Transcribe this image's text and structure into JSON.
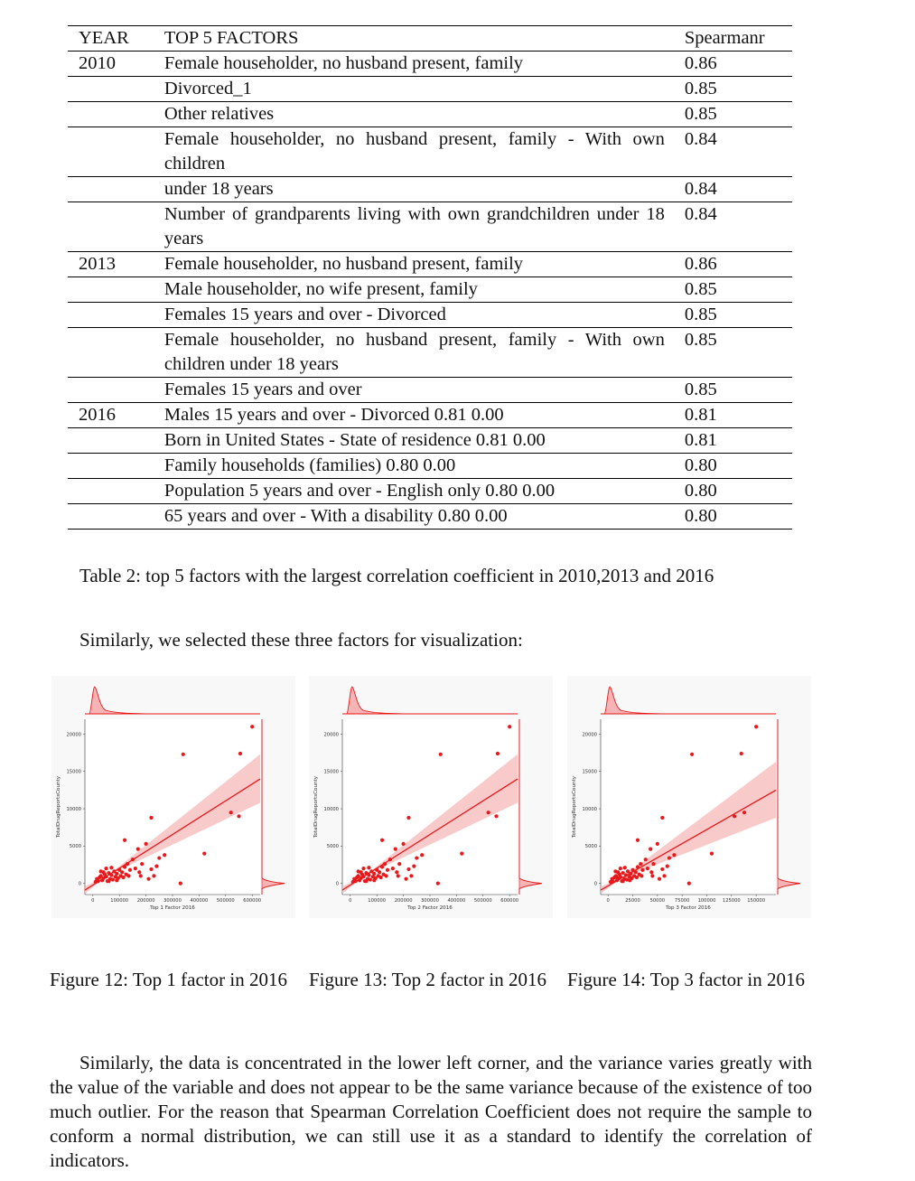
{
  "table": {
    "headers": [
      "YEAR",
      "TOP 5 FACTORS",
      "Spearmanr"
    ],
    "rows": [
      {
        "year": "2010",
        "factor": "Female householder, no husband present, family",
        "value": "0.86"
      },
      {
        "year": "",
        "factor": "Divorced_1",
        "value": "0.85"
      },
      {
        "year": "",
        "factor": "Other relatives",
        "value": "0.85"
      },
      {
        "year": "",
        "factor": "Female householder, no husband present, family - With own children",
        "value": "0.84"
      },
      {
        "year": "",
        "factor": "under 18 years",
        "value": "0.84"
      },
      {
        "year": "",
        "factor": "Number of grandparents living with own grandchildren under 18 years",
        "value": "0.84"
      },
      {
        "year": "2013",
        "factor": "Female householder, no husband present, family",
        "value": "0.86"
      },
      {
        "year": "",
        "factor": "Male householder, no wife present, family",
        "value": "0.85"
      },
      {
        "year": "",
        "factor": "Females 15 years and over - Divorced",
        "value": "0.85"
      },
      {
        "year": "",
        "factor": "Female householder, no husband present, family - With own children under 18 years",
        "value": "0.85"
      },
      {
        "year": "",
        "factor": "Females 15 years and over",
        "value": "0.85"
      },
      {
        "year": "2016",
        "factor": "Males 15 years and over - Divorced 0.81 0.00",
        "value": "0.81"
      },
      {
        "year": "",
        "factor": "Born in United States - State of residence 0.81 0.00",
        "value": "0.81"
      },
      {
        "year": "",
        "factor": "Family households (families) 0.80 0.00",
        "value": "0.80"
      },
      {
        "year": "",
        "factor": "Population 5 years and over - English only 0.80 0.00",
        "value": "0.80"
      },
      {
        "year": "",
        "factor": "65 years and over - With a disability 0.80 0.00",
        "value": "0.80"
      }
    ]
  },
  "caption": "Table 2: top 5 factors with the largest correlation coefficient in 2010,2013 and 2016",
  "intro": "Similarly, we selected these three factors for visualization:",
  "figure_captions": [
    "Figure 12: Top 1 factor in 2016",
    "Figure 13: Top 2 factor in 2016",
    "Figure 14: Top 3 factor in 2016"
  ],
  "paragraph": "Similarly, the data is concentrated in the lower left corner, and the variance varies greatly with the value of the variable and does not appear to be the same variance because of the existence of too much outlier. For the reason that Spearman Correlation Coefficient does not require the sample to conform a normal distribution, we can still use it as a standard to identify the correlation of indicators.",
  "chart_data": [
    {
      "type": "scatter",
      "xlabel": "Top 1 Factor 2016",
      "ylabel": "TotalDrugReportsCounty",
      "xlim": [
        -30000,
        630000
      ],
      "ylim": [
        -1500,
        22000
      ],
      "xticks": [
        0,
        100000,
        200000,
        300000,
        400000,
        500000,
        600000
      ],
      "yticks": [
        0,
        5000,
        10000,
        15000,
        20000
      ],
      "color": "#e8181b",
      "regression": {
        "x0": -30000,
        "y0": -900,
        "x1": 630000,
        "y1": 14000
      },
      "ci": {
        "lower_end": 10800,
        "upper_end": 17300
      },
      "points": [
        [
          10000,
          200
        ],
        [
          15000,
          600
        ],
        [
          20000,
          300
        ],
        [
          25000,
          800
        ],
        [
          30000,
          1000
        ],
        [
          35000,
          400
        ],
        [
          40000,
          700
        ],
        [
          45000,
          1200
        ],
        [
          50000,
          900
        ],
        [
          55000,
          300
        ],
        [
          60000,
          1400
        ],
        [
          65000,
          600
        ],
        [
          70000,
          1100
        ],
        [
          75000,
          500
        ],
        [
          80000,
          1600
        ],
        [
          85000,
          900
        ],
        [
          90000,
          1300
        ],
        [
          95000,
          700
        ],
        [
          100000,
          1800
        ],
        [
          105000,
          1000
        ],
        [
          110000,
          1500
        ],
        [
          115000,
          800
        ],
        [
          120000,
          2200
        ],
        [
          125000,
          1200
        ],
        [
          130000,
          2600
        ],
        [
          135000,
          1000
        ],
        [
          140000,
          1800
        ],
        [
          150000,
          3200
        ],
        [
          160000,
          2000
        ],
        [
          170000,
          4600
        ],
        [
          175000,
          1500
        ],
        [
          180000,
          1000
        ],
        [
          185000,
          2600
        ],
        [
          200000,
          5300
        ],
        [
          210000,
          600
        ],
        [
          220000,
          1900
        ],
        [
          220000,
          8800
        ],
        [
          230000,
          1000
        ],
        [
          240000,
          2300
        ],
        [
          250000,
          3400
        ],
        [
          270000,
          3800
        ],
        [
          330000,
          0
        ],
        [
          340000,
          17300
        ],
        [
          420000,
          4000
        ],
        [
          520000,
          9500
        ],
        [
          550000,
          9000
        ],
        [
          555000,
          17400
        ],
        [
          600000,
          21000
        ],
        [
          120000,
          5800
        ],
        [
          60000,
          300
        ],
        [
          40000,
          1500
        ],
        [
          70000,
          2100
        ],
        [
          90000,
          400
        ],
        [
          30000,
          1600
        ],
        [
          50000,
          2000
        ]
      ]
    },
    {
      "type": "scatter",
      "xlabel": "Top 2 Factor 2016",
      "ylabel": "TotalDrugReportsCounty",
      "xlim": [
        -30000,
        630000
      ],
      "ylim": [
        -1500,
        22000
      ],
      "xticks": [
        0,
        100000,
        200000,
        300000,
        400000,
        500000,
        600000
      ],
      "yticks": [
        0,
        5000,
        10000,
        15000,
        20000
      ],
      "color": "#e8181b",
      "regression": {
        "x0": -30000,
        "y0": -900,
        "x1": 630000,
        "y1": 14000
      },
      "ci": {
        "lower_end": 10800,
        "upper_end": 17300
      },
      "points": [
        [
          10000,
          200
        ],
        [
          15000,
          600
        ],
        [
          20000,
          300
        ],
        [
          25000,
          800
        ],
        [
          30000,
          1000
        ],
        [
          35000,
          400
        ],
        [
          40000,
          700
        ],
        [
          45000,
          1200
        ],
        [
          50000,
          900
        ],
        [
          55000,
          300
        ],
        [
          60000,
          1400
        ],
        [
          65000,
          600
        ],
        [
          70000,
          1100
        ],
        [
          75000,
          500
        ],
        [
          80000,
          1600
        ],
        [
          85000,
          900
        ],
        [
          90000,
          1300
        ],
        [
          95000,
          700
        ],
        [
          100000,
          1800
        ],
        [
          105000,
          1000
        ],
        [
          110000,
          1500
        ],
        [
          115000,
          800
        ],
        [
          120000,
          2200
        ],
        [
          125000,
          1200
        ],
        [
          130000,
          2600
        ],
        [
          135000,
          1000
        ],
        [
          140000,
          1800
        ],
        [
          150000,
          3200
        ],
        [
          160000,
          2000
        ],
        [
          170000,
          4600
        ],
        [
          175000,
          1500
        ],
        [
          180000,
          1000
        ],
        [
          185000,
          2600
        ],
        [
          200000,
          5300
        ],
        [
          210000,
          600
        ],
        [
          220000,
          1900
        ],
        [
          220000,
          8800
        ],
        [
          230000,
          1000
        ],
        [
          240000,
          2300
        ],
        [
          250000,
          3400
        ],
        [
          270000,
          3800
        ],
        [
          330000,
          0
        ],
        [
          340000,
          17300
        ],
        [
          420000,
          4000
        ],
        [
          520000,
          9500
        ],
        [
          550000,
          9000
        ],
        [
          555000,
          17400
        ],
        [
          600000,
          21000
        ],
        [
          120000,
          5800
        ],
        [
          60000,
          300
        ],
        [
          40000,
          1500
        ],
        [
          70000,
          2100
        ],
        [
          90000,
          400
        ],
        [
          30000,
          1600
        ],
        [
          50000,
          2000
        ]
      ]
    },
    {
      "type": "scatter",
      "xlabel": "Top 3 Factor 2016",
      "ylabel": "TotalDrugReportsCounty",
      "xlim": [
        -7500,
        170000
      ],
      "ylim": [
        -1500,
        22000
      ],
      "xticks": [
        0,
        25000,
        50000,
        75000,
        100000,
        125000,
        150000
      ],
      "yticks": [
        0,
        5000,
        10000,
        15000,
        20000
      ],
      "color": "#e8181b",
      "regression": {
        "x0": -7500,
        "y0": -900,
        "x1": 170000,
        "y1": 12500
      },
      "ci": {
        "lower_end": 8800,
        "upper_end": 16300
      },
      "points": [
        [
          2500,
          200
        ],
        [
          4000,
          600
        ],
        [
          5000,
          300
        ],
        [
          6500,
          800
        ],
        [
          8000,
          1000
        ],
        [
          9000,
          400
        ],
        [
          10000,
          700
        ],
        [
          11500,
          1200
        ],
        [
          12500,
          900
        ],
        [
          14000,
          300
        ],
        [
          15000,
          1400
        ],
        [
          16500,
          600
        ],
        [
          18000,
          1100
        ],
        [
          19000,
          500
        ],
        [
          20000,
          1600
        ],
        [
          21500,
          900
        ],
        [
          23000,
          1300
        ],
        [
          24000,
          700
        ],
        [
          25000,
          1800
        ],
        [
          26500,
          1000
        ],
        [
          28000,
          1500
        ],
        [
          29000,
          800
        ],
        [
          30000,
          2200
        ],
        [
          31500,
          1200
        ],
        [
          33000,
          2600
        ],
        [
          34000,
          1000
        ],
        [
          35000,
          1800
        ],
        [
          38000,
          3200
        ],
        [
          40000,
          2000
        ],
        [
          43000,
          4600
        ],
        [
          44000,
          1500
        ],
        [
          45000,
          1000
        ],
        [
          46000,
          2600
        ],
        [
          50000,
          5300
        ],
        [
          52000,
          600
        ],
        [
          55000,
          1900
        ],
        [
          55000,
          8800
        ],
        [
          57000,
          1000
        ],
        [
          60000,
          2300
        ],
        [
          62000,
          3400
        ],
        [
          67000,
          3800
        ],
        [
          82000,
          0
        ],
        [
          85000,
          17300
        ],
        [
          105000,
          4000
        ],
        [
          128000,
          9000
        ],
        [
          135000,
          17400
        ],
        [
          138000,
          9500
        ],
        [
          150000,
          21000
        ],
        [
          30000,
          5800
        ],
        [
          15000,
          300
        ],
        [
          10000,
          1500
        ],
        [
          17000,
          2100
        ],
        [
          22000,
          400
        ],
        [
          7500,
          1600
        ],
        [
          12500,
          2000
        ]
      ]
    }
  ]
}
